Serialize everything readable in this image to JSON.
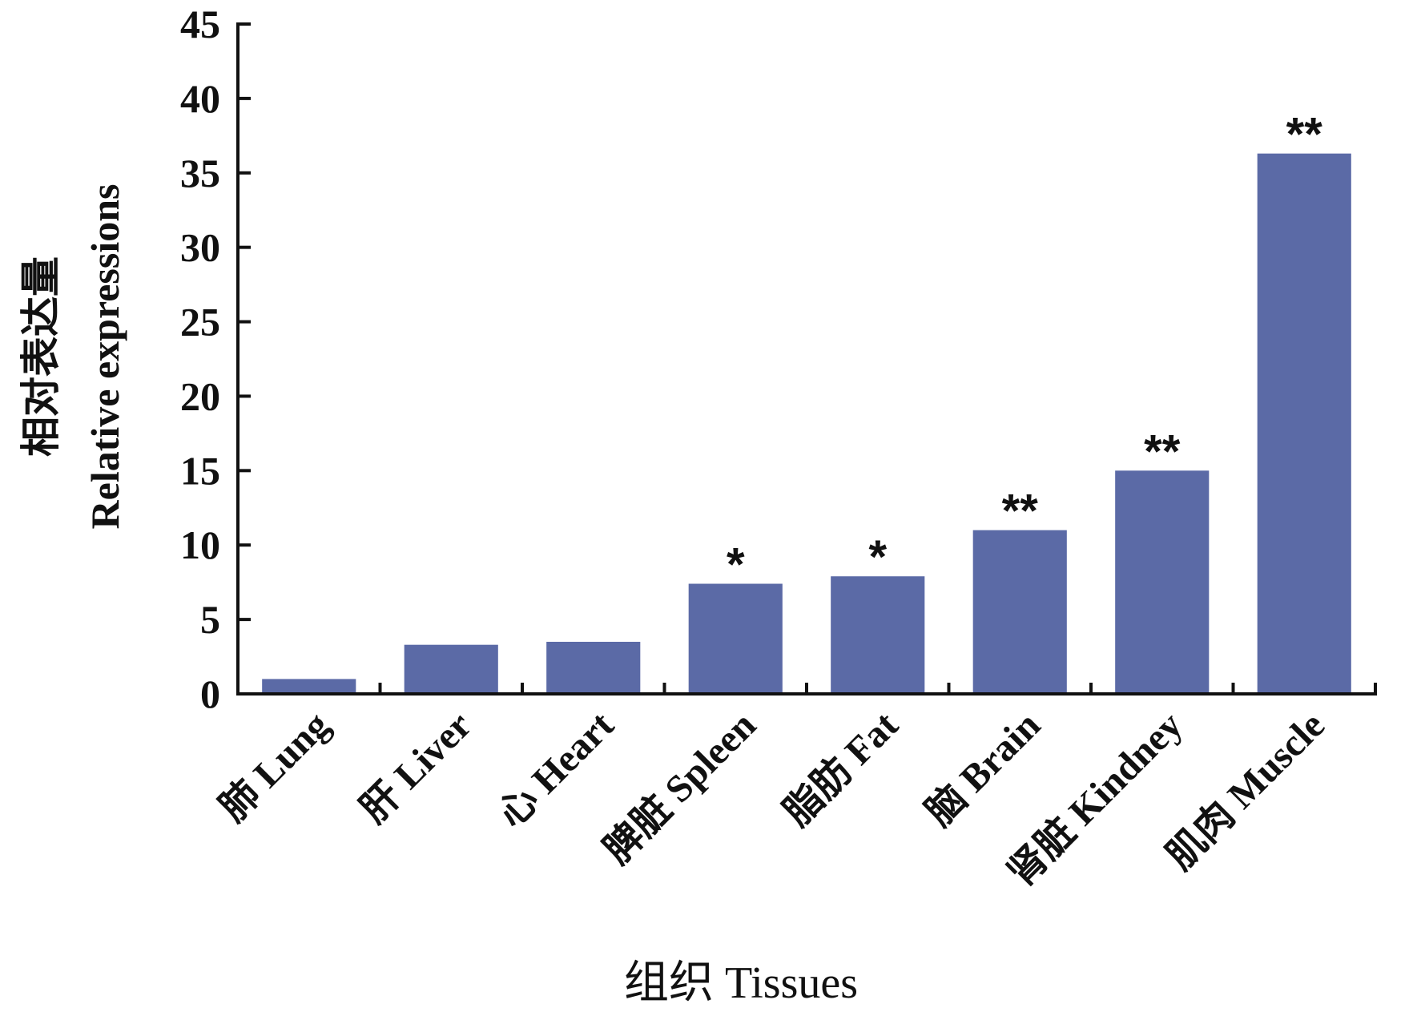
{
  "chart_data": {
    "type": "bar",
    "categories": [
      "肺 Lung",
      "肝 Liver",
      "心 Heart",
      "脾脏 Spleen",
      "脂肪 Fat",
      "脑 Brain",
      "肾脏 Kindney",
      "肌肉 Muscle"
    ],
    "values": [
      1.0,
      3.3,
      3.5,
      7.4,
      7.9,
      11.0,
      15.0,
      36.3
    ],
    "annotations": [
      "",
      "",
      "",
      "*",
      "*",
      "**",
      "**",
      "**"
    ],
    "ylabel_zh": "相对表达量",
    "ylabel": "Relative expressions",
    "xlabel": "组织  Tissues",
    "ylim": [
      0,
      45
    ],
    "yticks": [
      0,
      5,
      10,
      15,
      20,
      25,
      30,
      35,
      40,
      45
    ],
    "grid": false,
    "legend": "none",
    "bar_color": "#5b6aa6"
  }
}
